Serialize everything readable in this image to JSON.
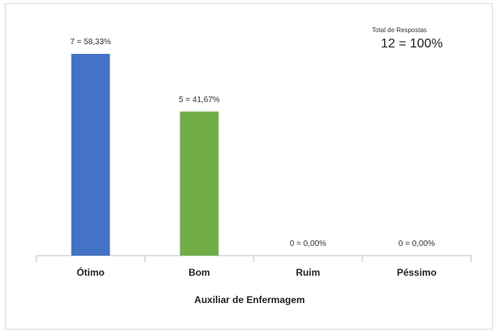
{
  "chart_data": {
    "type": "bar",
    "categories": [
      "Ótimo",
      "Bom",
      "Ruim",
      "Péssimo"
    ],
    "values": [
      7,
      5,
      0,
      0
    ],
    "data_labels": [
      "7 = 58,33%",
      "5 = 41,67%",
      "0 = 0,00%",
      "0 = 0,00%"
    ],
    "colors": [
      "#4472c4",
      "#70ad47",
      "#a5a5a5",
      "#ffc000"
    ],
    "xlabel": "Auxiliar de Enfermagem",
    "ylabel": "",
    "ylim": [
      0,
      7
    ],
    "grid": false,
    "legend": "none",
    "annotation": {
      "caption": "Total de Respostas",
      "value": "12 = 100%"
    }
  }
}
